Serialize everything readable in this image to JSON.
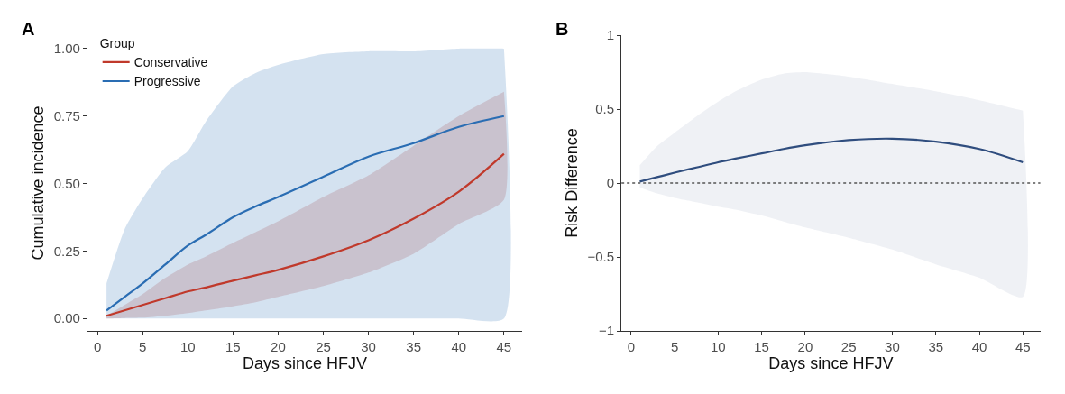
{
  "chart_data": [
    {
      "type": "line",
      "title": "A",
      "xlabel": "Days since HFJV",
      "ylabel": "Cumulative incidence",
      "legend_title": "Group",
      "legend": "top left",
      "x": [
        1,
        3,
        5,
        7.5,
        10,
        12,
        15,
        17.5,
        20,
        25,
        30,
        35,
        40,
        45
      ],
      "series": [
        {
          "name": "Conservative",
          "color": "#c0392b",
          "values": [
            0.01,
            0.03,
            0.05,
            0.075,
            0.1,
            0.115,
            0.14,
            0.16,
            0.18,
            0.23,
            0.29,
            0.37,
            0.47,
            0.61
          ],
          "lower": [
            0,
            0.002,
            0.003,
            0.01,
            0.02,
            0.03,
            0.045,
            0.06,
            0.08,
            0.12,
            0.17,
            0.24,
            0.35,
            0.44
          ],
          "upper": [
            0.01,
            0.05,
            0.09,
            0.15,
            0.2,
            0.23,
            0.28,
            0.32,
            0.36,
            0.45,
            0.53,
            0.64,
            0.75,
            0.84
          ]
        },
        {
          "name": "Progressive",
          "color": "#2a6db3",
          "values": [
            0.03,
            0.08,
            0.13,
            0.2,
            0.27,
            0.31,
            0.375,
            0.415,
            0.45,
            0.525,
            0.6,
            0.65,
            0.71,
            0.75
          ],
          "lower": [
            0,
            0,
            0,
            0,
            0,
            0,
            0,
            0,
            0,
            0,
            0,
            0,
            0,
            0
          ],
          "upper": [
            0.13,
            0.33,
            0.445,
            0.56,
            0.62,
            0.73,
            0.86,
            0.91,
            0.94,
            0.98,
            0.99,
            0.99,
            1.0,
            1.0
          ]
        }
      ],
      "xlim": [
        -1.1,
        47
      ],
      "xticks": [
        0,
        5,
        10,
        15,
        20,
        25,
        30,
        35,
        40,
        45
      ],
      "ylim": [
        -0.046,
        1.05
      ],
      "yticks": [
        {
          "value": 0,
          "label": "0.00"
        },
        {
          "value": 0.25,
          "label": "0.25"
        },
        {
          "value": 0.5,
          "label": "0.50"
        },
        {
          "value": 0.75,
          "label": "0.75"
        },
        {
          "value": 1,
          "label": "1.00"
        }
      ]
    },
    {
      "type": "line",
      "title": "B",
      "xlabel": "Days since HFJV",
      "ylabel": "Risk Difference",
      "x": [
        1,
        3,
        5,
        7.5,
        10,
        12,
        15,
        17.5,
        20,
        25,
        30,
        35,
        40,
        45
      ],
      "series": [
        {
          "color": "#2f4d7e",
          "values": [
            0.01,
            0.04,
            0.07,
            0.105,
            0.14,
            0.165,
            0.2,
            0.23,
            0.255,
            0.29,
            0.3,
            0.28,
            0.23,
            0.14
          ],
          "lower": [
            -0.03,
            -0.07,
            -0.1,
            -0.13,
            -0.16,
            -0.18,
            -0.22,
            -0.26,
            -0.3,
            -0.37,
            -0.45,
            -0.55,
            -0.64,
            -0.77
          ],
          "upper": [
            0.12,
            0.25,
            0.34,
            0.45,
            0.55,
            0.62,
            0.7,
            0.74,
            0.75,
            0.72,
            0.67,
            0.62,
            0.56,
            0.49
          ]
        }
      ],
      "xlim": [
        -1.1,
        47
      ],
      "xticks": [
        0,
        5,
        10,
        15,
        20,
        25,
        30,
        35,
        40,
        45
      ],
      "ylim": [
        -1,
        1
      ],
      "yticks": [
        {
          "value": -1,
          "label": "−1"
        },
        {
          "value": -0.5,
          "label": "−0.5"
        },
        0,
        0.5,
        1
      ],
      "ref_lines": [
        {
          "axis": "y",
          "value": 0,
          "color": "#555555",
          "line_style": "dotted"
        }
      ]
    }
  ]
}
